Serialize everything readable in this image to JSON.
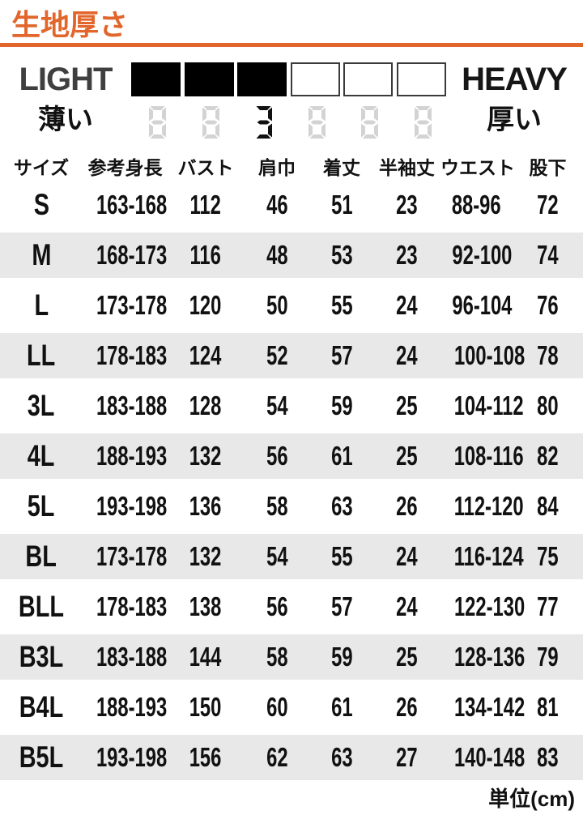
{
  "page": {
    "title": "生地厚さ",
    "unit_note": "単位(cm)"
  },
  "thickness_scale": {
    "light_label": "LIGHT",
    "heavy_label": "HEAVY",
    "thin_label": "薄い",
    "thick_label": "厚い",
    "levels": 6,
    "value": 3,
    "value_digit": "3",
    "placeholder_digit": "8",
    "filled_box_color": "#000000",
    "empty_box_border_color": "#3a3a3a",
    "active_digit_color": "#111111",
    "placeholder_digit_color": "#d3d3d3"
  },
  "size_table": {
    "columns": [
      "サイズ",
      "参考身長",
      "バスト",
      "肩巾",
      "着丈",
      "半袖丈",
      "ウエスト",
      "股下"
    ],
    "rows": [
      [
        "S",
        "163-168",
        "112",
        "46",
        "51",
        "23",
        "88-96",
        "72"
      ],
      [
        "M",
        "168-173",
        "116",
        "48",
        "53",
        "23",
        "92-100",
        "74"
      ],
      [
        "L",
        "173-178",
        "120",
        "50",
        "55",
        "24",
        "96-104",
        "76"
      ],
      [
        "LL",
        "178-183",
        "124",
        "52",
        "57",
        "24",
        "100-108",
        "78"
      ],
      [
        "3L",
        "183-188",
        "128",
        "54",
        "59",
        "25",
        "104-112",
        "80"
      ],
      [
        "4L",
        "188-193",
        "132",
        "56",
        "61",
        "25",
        "108-116",
        "82"
      ],
      [
        "5L",
        "193-198",
        "136",
        "58",
        "63",
        "26",
        "112-120",
        "84"
      ],
      [
        "BL",
        "173-178",
        "132",
        "54",
        "55",
        "24",
        "116-124",
        "75"
      ],
      [
        "BLL",
        "178-183",
        "138",
        "56",
        "57",
        "24",
        "122-130",
        "77"
      ],
      [
        "B3L",
        "183-188",
        "144",
        "58",
        "59",
        "25",
        "128-136",
        "79"
      ],
      [
        "B4L",
        "188-193",
        "150",
        "60",
        "61",
        "26",
        "134-142",
        "81"
      ],
      [
        "B5L",
        "193-198",
        "156",
        "62",
        "63",
        "27",
        "140-148",
        "83"
      ]
    ]
  },
  "colors": {
    "accent_orange": "#e2662b",
    "row_stripe": "#e8e8e8"
  }
}
